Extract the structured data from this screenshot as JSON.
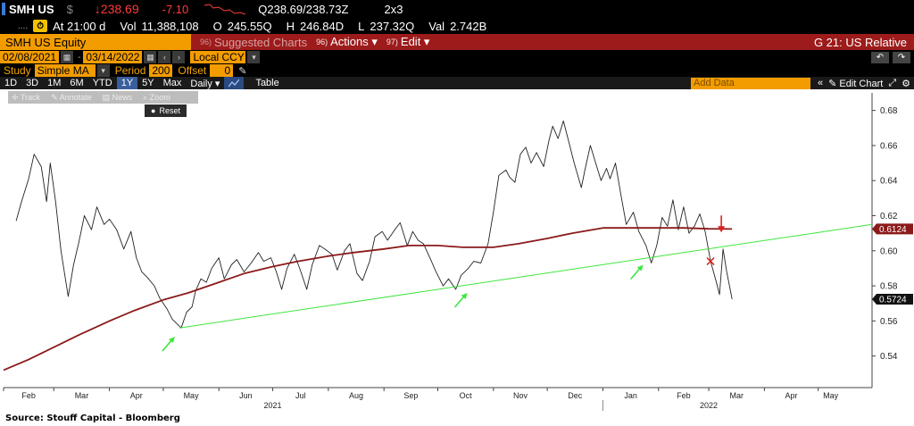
{
  "quote": {
    "ticker": "SMH US",
    "currency": "$",
    "last": "↓238.69",
    "change": "-7.10",
    "bid_ask": "Q238.69/238.73Z",
    "size": "2x3",
    "time_label": "At 21:00 d",
    "vol_label": "Vol",
    "vol": "11,388,108",
    "open_label": "O",
    "open": "245.55Q",
    "high_label": "H",
    "high": "246.84D",
    "low_label": "L",
    "low": "237.32Q",
    "val_label": "Val",
    "val": "2.742B"
  },
  "menubar": {
    "security": "SMH US Equity",
    "suggested_num": "96)",
    "suggested": "Suggested Charts",
    "actions_num": "96)",
    "actions": "Actions ▾",
    "edit_num": "97)",
    "edit": "Edit ▾",
    "title": "G 21: US Relative"
  },
  "range": {
    "start": "02/08/2021",
    "end": "03/14/2022",
    "currency": "Local CCY"
  },
  "study": {
    "label": "Study",
    "type": "Simple MA",
    "period_label": "Period",
    "period": "200",
    "offset_label": "Offset",
    "offset": "0"
  },
  "toolbar": {
    "periods": [
      "1D",
      "3D",
      "1M",
      "6M",
      "YTD",
      "1Y",
      "5Y",
      "Max"
    ],
    "selected": "1Y",
    "frequency": "Daily ▾",
    "table": "Table",
    "add_data": "Add Data",
    "edit_chart": "Edit Chart"
  },
  "tools": {
    "track": "Track",
    "annotate": "Annotate",
    "news": "News",
    "zoom": "Zoom",
    "reset": "Reset"
  },
  "source": "Source:  Stouff Capital - Bloomberg",
  "colors": {
    "price": "#222222",
    "ma": "#8b1a1a",
    "trend": "#3ee63e",
    "marker_red": "#e02020",
    "accent": "#f39c00"
  },
  "chart_data": {
    "type": "line",
    "x_range": [
      "2021-02-01",
      "2022-05-31"
    ],
    "ylim": [
      0.522,
      0.69
    ],
    "yticks": [
      0.54,
      0.56,
      0.58,
      0.6,
      0.62,
      0.64,
      0.66,
      0.68
    ],
    "ytick_labels": [
      "0.54",
      "0.56",
      "0.58",
      "0.60",
      "0.62",
      "0.64",
      "0.66",
      "0.68"
    ],
    "month_labels": [
      "Feb",
      "Mar",
      "Apr",
      "May",
      "Jun",
      "Jul",
      "Aug",
      "Sep",
      "Oct",
      "Nov",
      "Dec",
      "Jan",
      "Feb",
      "Mar",
      "Apr",
      "May"
    ],
    "month_starts": [
      "2021-02-01",
      "2021-03-01",
      "2021-04-01",
      "2021-05-01",
      "2021-06-01",
      "2021-07-01",
      "2021-08-01",
      "2021-09-01",
      "2021-10-01",
      "2021-11-01",
      "2021-12-01",
      "2022-01-01",
      "2022-02-01",
      "2022-03-01",
      "2022-04-01",
      "2022-05-01"
    ],
    "year_labels": [
      {
        "label": "2021",
        "date": "2021-07-01"
      },
      {
        "label": "2022",
        "date": "2022-03-01"
      }
    ],
    "year_divider": "2022-01-01",
    "last_price_label": "0.5724",
    "ma_label": "0.6124",
    "series": [
      {
        "key": "price",
        "points": [
          [
            "2021-02-08",
            0.617
          ],
          [
            "2021-02-11",
            0.628
          ],
          [
            "2021-02-15",
            0.641
          ],
          [
            "2021-02-18",
            0.655
          ],
          [
            "2021-02-22",
            0.648
          ],
          [
            "2021-02-25",
            0.628
          ],
          [
            "2021-02-27",
            0.65
          ],
          [
            "2021-03-02",
            0.628
          ],
          [
            "2021-03-05",
            0.6
          ],
          [
            "2021-03-09",
            0.574
          ],
          [
            "2021-03-12",
            0.592
          ],
          [
            "2021-03-15",
            0.605
          ],
          [
            "2021-03-18",
            0.62
          ],
          [
            "2021-03-22",
            0.612
          ],
          [
            "2021-03-25",
            0.625
          ],
          [
            "2021-03-29",
            0.615
          ],
          [
            "2021-04-01",
            0.618
          ],
          [
            "2021-04-05",
            0.612
          ],
          [
            "2021-04-09",
            0.601
          ],
          [
            "2021-04-13",
            0.611
          ],
          [
            "2021-04-16",
            0.596
          ],
          [
            "2021-04-19",
            0.588
          ],
          [
            "2021-04-22",
            0.585
          ],
          [
            "2021-04-26",
            0.58
          ],
          [
            "2021-04-29",
            0.573
          ],
          [
            "2021-05-03",
            0.567
          ],
          [
            "2021-05-06",
            0.561
          ],
          [
            "2021-05-08",
            0.559
          ],
          [
            "2021-05-11",
            0.556
          ],
          [
            "2021-05-14",
            0.565
          ],
          [
            "2021-05-17",
            0.568
          ],
          [
            "2021-05-19",
            0.577
          ],
          [
            "2021-05-22",
            0.584
          ],
          [
            "2021-05-25",
            0.582
          ],
          [
            "2021-05-28",
            0.59
          ],
          [
            "2021-06-01",
            0.596
          ],
          [
            "2021-06-04",
            0.584
          ],
          [
            "2021-06-08",
            0.592
          ],
          [
            "2021-06-11",
            0.595
          ],
          [
            "2021-06-15",
            0.588
          ],
          [
            "2021-06-19",
            0.593
          ],
          [
            "2021-06-23",
            0.599
          ],
          [
            "2021-06-26",
            0.594
          ],
          [
            "2021-06-30",
            0.596
          ],
          [
            "2021-07-03",
            0.588
          ],
          [
            "2021-07-06",
            0.578
          ],
          [
            "2021-07-09",
            0.59
          ],
          [
            "2021-07-13",
            0.598
          ],
          [
            "2021-07-16",
            0.59
          ],
          [
            "2021-07-20",
            0.578
          ],
          [
            "2021-07-23",
            0.592
          ],
          [
            "2021-07-27",
            0.603
          ],
          [
            "2021-07-30",
            0.601
          ],
          [
            "2021-08-03",
            0.598
          ],
          [
            "2021-08-06",
            0.589
          ],
          [
            "2021-08-10",
            0.6
          ],
          [
            "2021-08-13",
            0.604
          ],
          [
            "2021-08-17",
            0.587
          ],
          [
            "2021-08-20",
            0.583
          ],
          [
            "2021-08-24",
            0.594
          ],
          [
            "2021-08-27",
            0.608
          ],
          [
            "2021-08-31",
            0.611
          ],
          [
            "2021-09-03",
            0.606
          ],
          [
            "2021-09-07",
            0.612
          ],
          [
            "2021-09-10",
            0.616
          ],
          [
            "2021-09-14",
            0.603
          ],
          [
            "2021-09-17",
            0.611
          ],
          [
            "2021-09-20",
            0.606
          ],
          [
            "2021-09-23",
            0.604
          ],
          [
            "2021-09-27",
            0.595
          ],
          [
            "2021-09-30",
            0.588
          ],
          [
            "2021-10-04",
            0.58
          ],
          [
            "2021-10-07",
            0.584
          ],
          [
            "2021-10-11",
            0.578
          ],
          [
            "2021-10-14",
            0.586
          ],
          [
            "2021-10-18",
            0.59
          ],
          [
            "2021-10-21",
            0.594
          ],
          [
            "2021-10-25",
            0.593
          ],
          [
            "2021-10-29",
            0.604
          ],
          [
            "2021-11-01",
            0.622
          ],
          [
            "2021-11-04",
            0.643
          ],
          [
            "2021-11-08",
            0.646
          ],
          [
            "2021-11-10",
            0.642
          ],
          [
            "2021-11-13",
            0.639
          ],
          [
            "2021-11-16",
            0.655
          ],
          [
            "2021-11-19",
            0.659
          ],
          [
            "2021-11-22",
            0.65
          ],
          [
            "2021-11-25",
            0.656
          ],
          [
            "2021-11-29",
            0.648
          ],
          [
            "2021-12-02",
            0.663
          ],
          [
            "2021-12-04",
            0.671
          ],
          [
            "2021-12-07",
            0.664
          ],
          [
            "2021-12-10",
            0.674
          ],
          [
            "2021-12-13",
            0.662
          ],
          [
            "2021-12-16",
            0.65
          ],
          [
            "2021-12-20",
            0.636
          ],
          [
            "2021-12-22",
            0.646
          ],
          [
            "2021-12-25",
            0.66
          ],
          [
            "2021-12-28",
            0.65
          ],
          [
            "2021-12-31",
            0.64
          ],
          [
            "2022-01-03",
            0.647
          ],
          [
            "2022-01-05",
            0.641
          ],
          [
            "2022-01-08",
            0.65
          ],
          [
            "2022-01-11",
            0.632
          ],
          [
            "2022-01-14",
            0.615
          ],
          [
            "2022-01-18",
            0.622
          ],
          [
            "2022-01-21",
            0.611
          ],
          [
            "2022-01-25",
            0.603
          ],
          [
            "2022-01-28",
            0.593
          ],
          [
            "2022-01-31",
            0.603
          ],
          [
            "2022-02-03",
            0.619
          ],
          [
            "2022-02-06",
            0.614
          ],
          [
            "2022-02-09",
            0.629
          ],
          [
            "2022-02-12",
            0.612
          ],
          [
            "2022-02-15",
            0.625
          ],
          [
            "2022-02-18",
            0.61
          ],
          [
            "2022-02-21",
            0.614
          ],
          [
            "2022-02-24",
            0.621
          ],
          [
            "2022-02-27",
            0.611
          ],
          [
            "2022-03-02",
            0.594
          ],
          [
            "2022-03-05",
            0.583
          ],
          [
            "2022-03-07",
            0.575
          ],
          [
            "2022-03-09",
            0.601
          ],
          [
            "2022-03-11",
            0.588
          ],
          [
            "2022-03-14",
            0.5724
          ]
        ]
      },
      {
        "key": "ma",
        "points": [
          [
            "2021-02-01",
            0.532
          ],
          [
            "2021-02-15",
            0.538
          ],
          [
            "2021-03-01",
            0.545
          ],
          [
            "2021-03-15",
            0.552
          ],
          [
            "2021-04-01",
            0.56
          ],
          [
            "2021-04-15",
            0.566
          ],
          [
            "2021-05-01",
            0.572
          ],
          [
            "2021-05-15",
            0.576
          ],
          [
            "2021-06-01",
            0.582
          ],
          [
            "2021-06-15",
            0.587
          ],
          [
            "2021-07-01",
            0.591
          ],
          [
            "2021-07-15",
            0.594
          ],
          [
            "2021-08-01",
            0.597
          ],
          [
            "2021-08-15",
            0.599
          ],
          [
            "2021-09-01",
            0.601
          ],
          [
            "2021-09-15",
            0.603
          ],
          [
            "2021-10-01",
            0.603
          ],
          [
            "2021-10-15",
            0.602
          ],
          [
            "2021-11-01",
            0.602
          ],
          [
            "2021-11-15",
            0.604
          ],
          [
            "2021-12-01",
            0.607
          ],
          [
            "2021-12-15",
            0.61
          ],
          [
            "2022-01-01",
            0.613
          ],
          [
            "2022-01-15",
            0.613
          ],
          [
            "2022-02-01",
            0.613
          ],
          [
            "2022-02-15",
            0.613
          ],
          [
            "2022-03-01",
            0.6125
          ],
          [
            "2022-03-14",
            0.6124
          ]
        ]
      },
      {
        "key": "trend",
        "points": [
          [
            "2021-05-10",
            0.556
          ],
          [
            "2022-05-31",
            0.615
          ]
        ]
      }
    ],
    "annotations": [
      {
        "type": "up-arrow",
        "date": "2021-05-04",
        "value": 0.55,
        "color": "green"
      },
      {
        "type": "up-arrow",
        "date": "2021-10-14",
        "value": 0.575,
        "color": "green"
      },
      {
        "type": "up-arrow",
        "date": "2022-01-20",
        "value": 0.591,
        "color": "green"
      },
      {
        "type": "down-arrow",
        "date": "2022-03-08",
        "value": 0.614,
        "color": "red"
      },
      {
        "type": "x-mark",
        "date": "2022-03-02",
        "value": 0.594,
        "color": "red"
      }
    ]
  }
}
